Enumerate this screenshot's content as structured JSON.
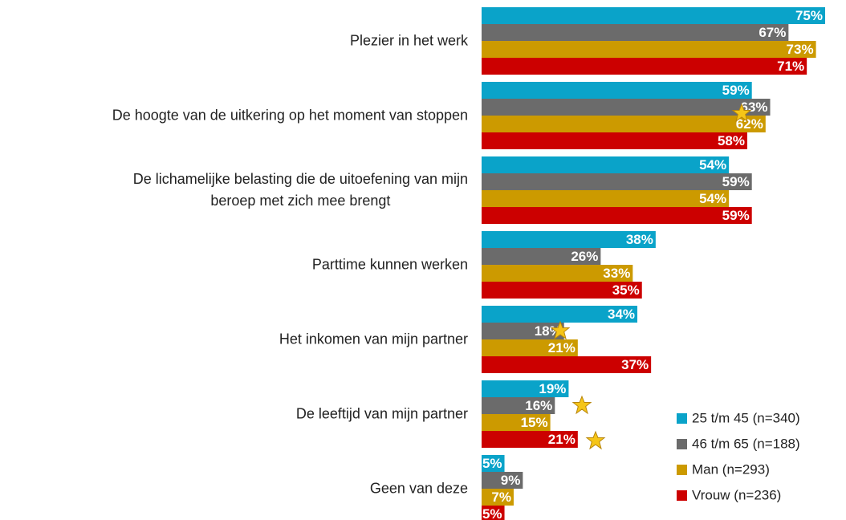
{
  "chart_data": {
    "type": "bar",
    "orientation": "horizontal",
    "categories": [
      "Plezier in het werk",
      "De hoogte van de uitkering op het moment van stoppen",
      "De lichamelijke belasting die de uitoefening van mijn\nberoep met zich mee brengt",
      "Parttime kunnen werken",
      "Het inkomen van mijn partner",
      "De leeftijd van mijn partner",
      "Geen van deze"
    ],
    "series": [
      {
        "name": "25 t/m 45  (n=340)",
        "color": "#0aa3c9",
        "values": [
          75,
          59,
          54,
          38,
          34,
          19,
          5
        ],
        "value_labels": [
          "75%",
          "59%",
          "54%",
          "38%",
          "34%",
          "19%",
          "5%"
        ]
      },
      {
        "name": "46 t/m 65  (n=188)",
        "color": "#6b6b6b",
        "values": [
          67,
          63,
          59,
          26,
          18,
          16,
          9
        ],
        "value_labels": [
          "67%",
          "63%",
          "59%",
          "26%",
          "18%",
          "16%",
          "9%"
        ]
      },
      {
        "name": "Man  (n=293)",
        "color": "#cc9a00",
        "values": [
          73,
          62,
          54,
          33,
          21,
          15,
          7
        ],
        "value_labels": [
          "73%",
          "62%",
          "54%",
          "33%",
          "21%",
          "15%",
          "7%"
        ]
      },
      {
        "name": "Vrouw  (n=236)",
        "color": "#cc0000",
        "values": [
          71,
          58,
          59,
          35,
          37,
          21,
          5
        ],
        "value_labels": [
          "71%",
          "58%",
          "59%",
          "35%",
          "37%",
          "21%",
          "5%"
        ]
      }
    ]
  }
}
